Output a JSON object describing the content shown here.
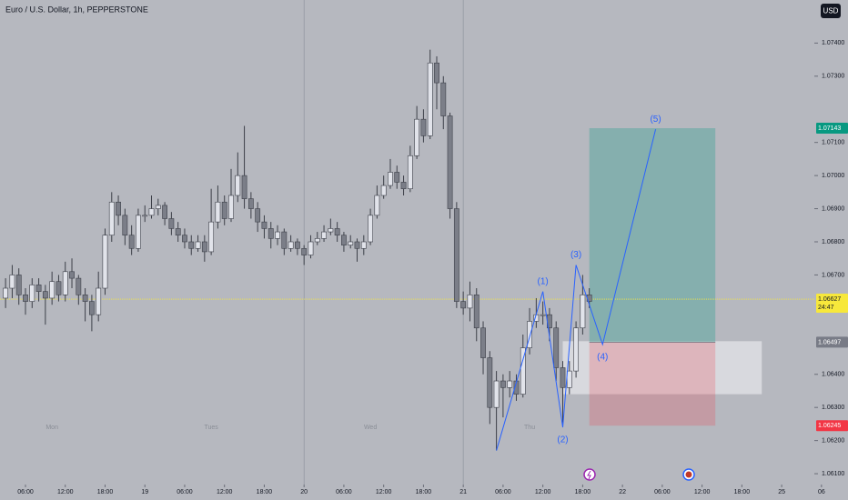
{
  "chart_data": {
    "type": "candlestick",
    "title": "Euro / U.S. Dollar, 1h, PEPPERSTONE",
    "currency": "USD",
    "up_color": "#e1e3ea",
    "down_color": "#7b7e88",
    "xlim": [
      -3.84,
      124
    ],
    "ylim": [
      1.0607,
      1.0753
    ],
    "yticks": [
      {
        "value": 1.074,
        "label": "1.07400"
      },
      {
        "value": 1.073,
        "label": "1.07300"
      },
      {
        "value": 1.071,
        "label": "1.07100"
      },
      {
        "value": 1.07,
        "label": "1.07000"
      },
      {
        "value": 1.069,
        "label": "1.06900"
      },
      {
        "value": 1.068,
        "label": "1.06800"
      },
      {
        "value": 1.067,
        "label": "1.06700"
      },
      {
        "value": 1.064,
        "label": "1.06400"
      },
      {
        "value": 1.063,
        "label": "1.06300"
      },
      {
        "value": 1.062,
        "label": "1.06200"
      },
      {
        "value": 1.061,
        "label": "1.06100"
      }
    ],
    "xticks": [
      {
        "value": 0,
        "label": "06:00"
      },
      {
        "value": 6,
        "label": "12:00"
      },
      {
        "value": 12,
        "label": "18:00"
      },
      {
        "value": 18,
        "label": "19"
      },
      {
        "value": 24,
        "label": "06:00"
      },
      {
        "value": 30,
        "label": "12:00"
      },
      {
        "value": 36,
        "label": "18:00"
      },
      {
        "value": 42,
        "label": "20"
      },
      {
        "value": 48,
        "label": "06:00"
      },
      {
        "value": 54,
        "label": "12:00"
      },
      {
        "value": 60,
        "label": "18:00"
      },
      {
        "value": 66,
        "label": "21"
      },
      {
        "value": 72,
        "label": "06:00"
      },
      {
        "value": 78,
        "label": "12:00"
      },
      {
        "value": 84,
        "label": "18:00"
      },
      {
        "value": 90,
        "label": "22"
      },
      {
        "value": 96,
        "label": "06:00"
      },
      {
        "value": 102,
        "label": "12:00"
      },
      {
        "value": 108,
        "label": "18:00"
      },
      {
        "value": 114,
        "label": "25"
      },
      {
        "value": 120,
        "label": "06"
      }
    ],
    "session_breaks": [
      42,
      66
    ],
    "day_labels": [
      {
        "label": "Mon",
        "x": 4
      },
      {
        "label": "Tues",
        "x": 28
      },
      {
        "label": "Wed",
        "x": 52
      },
      {
        "label": "Thu",
        "x": 76
      }
    ],
    "ohlc": [
      [
        -3,
        1.0663,
        1.0669,
        1.066,
        1.0666
      ],
      [
        -2,
        1.0666,
        1.0673,
        1.0663,
        1.067
      ],
      [
        -1,
        1.067,
        1.0672,
        1.0661,
        1.0664
      ],
      [
        0,
        1.0664,
        1.0666,
        1.0658,
        1.0662
      ],
      [
        1,
        1.0662,
        1.0669,
        1.066,
        1.0667
      ],
      [
        2,
        1.0667,
        1.0669,
        1.0662,
        1.0665
      ],
      [
        3,
        1.0665,
        1.0667,
        1.0655,
        1.0663
      ],
      [
        4,
        1.0663,
        1.0671,
        1.0661,
        1.0668
      ],
      [
        5,
        1.0668,
        1.067,
        1.0662,
        1.0664
      ],
      [
        6,
        1.0664,
        1.0674,
        1.0662,
        1.0671
      ],
      [
        7,
        1.0671,
        1.0675,
        1.0666,
        1.0669
      ],
      [
        8,
        1.0669,
        1.067,
        1.0661,
        1.0664
      ],
      [
        9,
        1.0664,
        1.0666,
        1.0656,
        1.0662
      ],
      [
        10,
        1.0662,
        1.0664,
        1.0653,
        1.0658
      ],
      [
        11,
        1.0658,
        1.0671,
        1.0656,
        1.0666
      ],
      [
        12,
        1.0666,
        1.0684,
        1.0664,
        1.0682
      ],
      [
        13,
        1.0682,
        1.0695,
        1.068,
        1.0692
      ],
      [
        14,
        1.0692,
        1.0694,
        1.0685,
        1.0688
      ],
      [
        15,
        1.0688,
        1.069,
        1.0679,
        1.0682
      ],
      [
        16,
        1.0682,
        1.0685,
        1.0676,
        1.0678
      ],
      [
        17,
        1.0678,
        1.069,
        1.0677,
        1.0688
      ],
      [
        18,
        1.0688,
        1.0691,
        1.0686,
        1.0688
      ],
      [
        19,
        1.0688,
        1.0694,
        1.0687,
        1.069
      ],
      [
        20,
        1.069,
        1.0693,
        1.0688,
        1.0691
      ],
      [
        21,
        1.0691,
        1.0692,
        1.0685,
        1.0687
      ],
      [
        22,
        1.0687,
        1.0689,
        1.0682,
        1.0684
      ],
      [
        23,
        1.0684,
        1.0686,
        1.068,
        1.0682
      ],
      [
        24,
        1.0682,
        1.0684,
        1.0678,
        1.068
      ],
      [
        25,
        1.068,
        1.0682,
        1.0676,
        1.0678
      ],
      [
        26,
        1.0678,
        1.0682,
        1.0677,
        1.068
      ],
      [
        27,
        1.068,
        1.0682,
        1.0674,
        1.0677
      ],
      [
        28,
        1.0677,
        1.0696,
        1.0676,
        1.0686
      ],
      [
        29,
        1.0686,
        1.0697,
        1.0684,
        1.0692
      ],
      [
        30,
        1.0692,
        1.0694,
        1.0685,
        1.0687
      ],
      [
        31,
        1.0687,
        1.0702,
        1.0686,
        1.0694
      ],
      [
        32,
        1.0694,
        1.0707,
        1.0692,
        1.07
      ],
      [
        33,
        1.07,
        1.0715,
        1.069,
        1.0693
      ],
      [
        34,
        1.0693,
        1.0695,
        1.0687,
        1.069
      ],
      [
        35,
        1.069,
        1.0692,
        1.0683,
        1.0686
      ],
      [
        36,
        1.0686,
        1.0688,
        1.0681,
        1.0684
      ],
      [
        37,
        1.0684,
        1.0686,
        1.0678,
        1.0681
      ],
      [
        38,
        1.0681,
        1.0685,
        1.0679,
        1.0683
      ],
      [
        39,
        1.0683,
        1.0684,
        1.0676,
        1.0678
      ],
      [
        40,
        1.0678,
        1.0682,
        1.0677,
        1.068
      ],
      [
        41,
        1.068,
        1.0681,
        1.0676,
        1.0678
      ],
      [
        42,
        1.0678,
        1.0679,
        1.0673,
        1.0676
      ],
      [
        43,
        1.0676,
        1.0682,
        1.0675,
        1.068
      ],
      [
        44,
        1.068,
        1.0683,
        1.0679,
        1.0681
      ],
      [
        45,
        1.0681,
        1.0685,
        1.068,
        1.0683
      ],
      [
        46,
        1.0683,
        1.0687,
        1.0682,
        1.0684
      ],
      [
        47,
        1.0684,
        1.0686,
        1.068,
        1.0682
      ],
      [
        48,
        1.0682,
        1.0683,
        1.0677,
        1.0679
      ],
      [
        49,
        1.0679,
        1.0682,
        1.0678,
        1.068
      ],
      [
        50,
        1.068,
        1.0681,
        1.0674,
        1.0678
      ],
      [
        51,
        1.0678,
        1.0682,
        1.0676,
        1.068
      ],
      [
        52,
        1.068,
        1.069,
        1.0679,
        1.0688
      ],
      [
        53,
        1.0688,
        1.0697,
        1.0687,
        1.0694
      ],
      [
        54,
        1.0694,
        1.07,
        1.0693,
        1.0697
      ],
      [
        55,
        1.0697,
        1.0705,
        1.0696,
        1.0701
      ],
      [
        56,
        1.0701,
        1.0703,
        1.0696,
        1.0698
      ],
      [
        57,
        1.0698,
        1.07,
        1.0694,
        1.0696
      ],
      [
        58,
        1.0696,
        1.0709,
        1.0695,
        1.0706
      ],
      [
        59,
        1.0706,
        1.0721,
        1.0705,
        1.0717
      ],
      [
        60,
        1.0717,
        1.072,
        1.071,
        1.0712
      ],
      [
        61,
        1.0712,
        1.0738,
        1.0711,
        1.0734
      ],
      [
        62,
        1.0734,
        1.0736,
        1.072,
        1.0728
      ],
      [
        63,
        1.0728,
        1.073,
        1.0714,
        1.0718
      ],
      [
        64,
        1.0718,
        1.0719,
        1.0687,
        1.069
      ],
      [
        65,
        1.069,
        1.0692,
        1.066,
        1.0662
      ],
      [
        66,
        1.0662,
        1.0665,
        1.0658,
        1.066
      ],
      [
        67,
        1.066,
        1.0668,
        1.0656,
        1.0664
      ],
      [
        68,
        1.0664,
        1.0666,
        1.065,
        1.0654
      ],
      [
        69,
        1.0654,
        1.0656,
        1.064,
        1.0645
      ],
      [
        70,
        1.0645,
        1.0647,
        1.0625,
        1.063
      ],
      [
        71,
        1.063,
        1.0641,
        1.0617,
        1.0638
      ],
      [
        72,
        1.0638,
        1.064,
        1.0627,
        1.0636
      ],
      [
        73,
        1.0636,
        1.0641,
        1.0633,
        1.0638
      ],
      [
        74,
        1.0638,
        1.064,
        1.0632,
        1.0634
      ],
      [
        75,
        1.0634,
        1.0652,
        1.0633,
        1.0648
      ],
      [
        76,
        1.0648,
        1.066,
        1.0646,
        1.0656
      ],
      [
        77,
        1.0656,
        1.0663,
        1.0654,
        1.0658
      ],
      [
        78,
        1.0658,
        1.0662,
        1.0655,
        1.0658
      ],
      [
        79,
        1.0658,
        1.066,
        1.065,
        1.0654
      ],
      [
        80,
        1.0654,
        1.0656,
        1.0638,
        1.0642
      ],
      [
        81,
        1.0642,
        1.0644,
        1.0625,
        1.0636
      ],
      [
        82,
        1.0636,
        1.0644,
        1.0634,
        1.0641
      ],
      [
        83,
        1.0641,
        1.0656,
        1.0639,
        1.0654
      ],
      [
        84,
        1.0654,
        1.067,
        1.0652,
        1.0664
      ],
      [
        85,
        1.0664,
        1.0666,
        1.066,
        1.0662
      ]
    ],
    "last_price": {
      "value": 1.06627,
      "countdown": "24:47",
      "color": "#f7e83b"
    },
    "position": {
      "x": [
        85,
        104
      ],
      "target": 1.07143,
      "entry": 1.06497,
      "stop": 1.06245,
      "target_color": "#089981",
      "entry_color": "#787b86",
      "stop_color": "#f23645"
    },
    "zone": {
      "x": [
        81,
        111
      ],
      "y": [
        1.0634,
        1.065
      ]
    },
    "wave": {
      "x": [
        71,
        78,
        81,
        83,
        87,
        95
      ],
      "y": [
        1.0617,
        1.0665,
        1.0624,
        1.0673,
        1.0649,
        1.0714
      ],
      "labels": [
        null,
        "(1)",
        "(2)",
        "(3)",
        "(4)",
        "(5)"
      ],
      "color": "#2962ff"
    }
  }
}
